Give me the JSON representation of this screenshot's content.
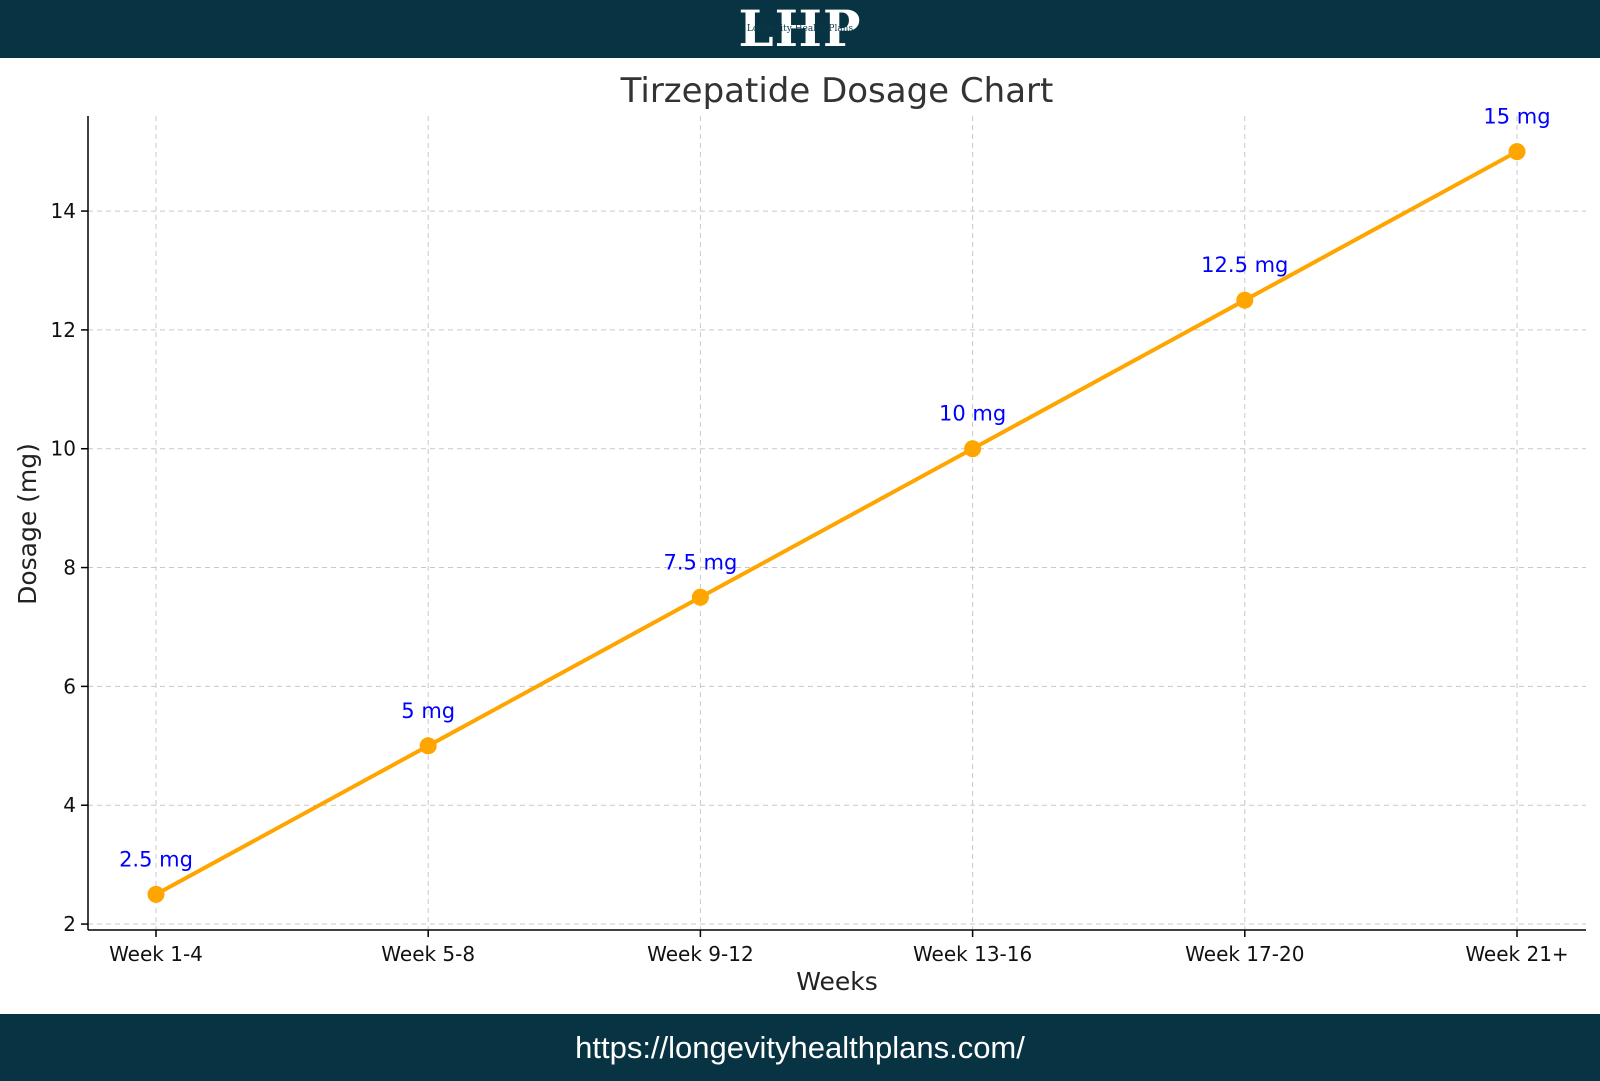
{
  "header": {
    "logo_letters": "LHP",
    "logo_subtitle": "Longevity Health Plans"
  },
  "footer": {
    "url": "https://longevityhealthplans.com/"
  },
  "colors": {
    "banner": "#083342",
    "line": "#FFA500",
    "data_label": "#0000FF"
  },
  "chart_data": {
    "type": "line",
    "title": "Tirzepatide Dosage Chart",
    "xlabel": "Weeks",
    "ylabel": "Dosage (mg)",
    "categories": [
      "Week 1-4",
      "Week 5-8",
      "Week 9-12",
      "Week 13-16",
      "Week 17-20",
      "Week 21+"
    ],
    "values": [
      2.5,
      5,
      7.5,
      10,
      12.5,
      15
    ],
    "data_labels": [
      "2.5 mg",
      "5 mg",
      "7.5 mg",
      "10 mg",
      "12.5 mg",
      "15 mg"
    ],
    "yticks": [
      2,
      4,
      6,
      8,
      10,
      12,
      14
    ],
    "ylim": [
      1.9,
      15.6
    ],
    "grid": true,
    "marker": "circle"
  }
}
